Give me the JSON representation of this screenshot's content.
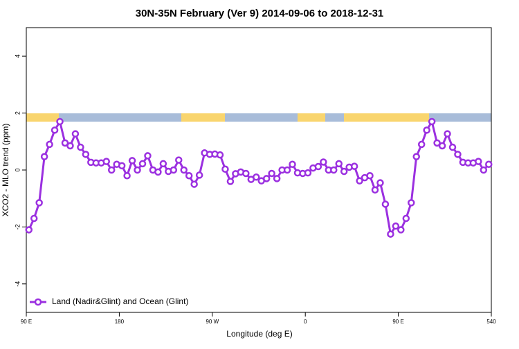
{
  "chart_data": {
    "type": "line",
    "title": "30N-35N February (Ver 9)   2014-09-06 to 2018-12-31",
    "x_label": "Longitude (deg E)",
    "y_label": "XCO2 - MLO trend (ppm)",
    "x": [
      92.5,
      97.5,
      102.5,
      107.5,
      112.5,
      117.5,
      122.5,
      127.5,
      132.5,
      137.5,
      142.5,
      147.5,
      152.5,
      157.5,
      162.5,
      167.5,
      172.5,
      177.5,
      182.5,
      187.5,
      192.5,
      197.5,
      202.5,
      207.5,
      212.5,
      217.5,
      222.5,
      227.5,
      232.5,
      237.5,
      242.5,
      247.5,
      252.5,
      257.5,
      262.5,
      267.5,
      272.5,
      277.5,
      282.5,
      287.5,
      292.5,
      297.5,
      302.5,
      307.5,
      312.5,
      317.5,
      322.5,
      327.5,
      332.5,
      337.5,
      342.5,
      347.5,
      352.5,
      357.5,
      362.5,
      367.5,
      372.5,
      377.5,
      382.5,
      387.5,
      392.5,
      397.5,
      402.5,
      407.5,
      412.5,
      417.5,
      422.5,
      427.5,
      432.5,
      437.5,
      442.5,
      447.5,
      452.5,
      457.5,
      462.5,
      467.5,
      472.5,
      477.5,
      482.5,
      487.5,
      492.5,
      497.5,
      502.5,
      507.5,
      512.5,
      517.5,
      522.5,
      527.5,
      532.5,
      537.5
    ],
    "series": [
      {
        "name": "Land (Nadir&Glint) and Ocean (Glint)",
        "color": "#9b30e0",
        "values": [
          -2.1,
          -1.7,
          -1.15,
          0.47,
          0.9,
          1.4,
          1.7,
          0.95,
          0.85,
          1.27,
          0.8,
          0.55,
          0.27,
          0.25,
          0.25,
          0.3,
          0,
          0.2,
          0.15,
          -0.2,
          0.33,
          0,
          0.22,
          0.5,
          0,
          -0.07,
          0.22,
          -0.05,
          0,
          0.35,
          0,
          -0.2,
          -0.5,
          -0.18,
          0.6,
          0.55,
          0.56,
          0.53,
          0.03,
          -0.4,
          -0.13,
          -0.07,
          -0.12,
          -0.33,
          -0.25,
          -0.38,
          -0.3,
          -0.12,
          -0.3,
          0,
          0,
          0.2,
          -0.1,
          -0.12,
          -0.1,
          0.07,
          0.12,
          0.28,
          0,
          0,
          0.22,
          -0.05,
          0.1,
          0.13,
          -0.38,
          -0.27,
          -0.2,
          -0.7,
          -0.45,
          -1.2,
          -2.25,
          -1.97,
          -2.1,
          -1.7,
          -1.15,
          0.47,
          0.9,
          1.4,
          1.7,
          0.95,
          0.85,
          1.27,
          0.8,
          0.55,
          0.27,
          0.25,
          0.25,
          0.3,
          0,
          0.2
        ]
      }
    ],
    "xlim": [
      90,
      540
    ],
    "xticks": [
      {
        "value": 90,
        "label": "90 E"
      },
      180,
      {
        "value": 270,
        "label": "90 W"
      },
      {
        "value": 360,
        "label": "0"
      },
      {
        "value": 450,
        "label": "90 E"
      },
      540
    ],
    "ylim": [
      -5,
      5
    ],
    "yticks": [
      -4,
      -2,
      0,
      2,
      4
    ],
    "legend": "bottom-left"
  }
}
